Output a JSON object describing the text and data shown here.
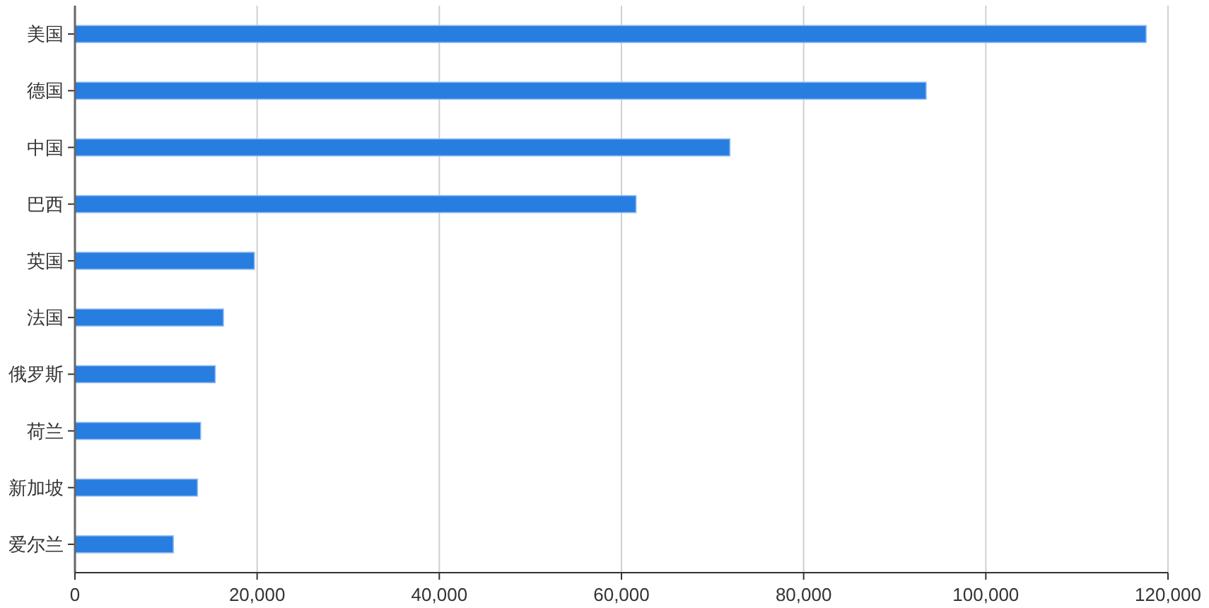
{
  "chart_data": {
    "type": "bar",
    "orientation": "horizontal",
    "categories": [
      "美国",
      "德国",
      "中国",
      "巴西",
      "英国",
      "法国",
      "俄罗斯",
      "荷兰",
      "新加坡",
      "爱尔兰"
    ],
    "values": [
      117600,
      93450,
      71900,
      61600,
      19700,
      16300,
      15400,
      13800,
      13450,
      10800
    ],
    "color": "#277de0",
    "xlim": [
      0,
      120000
    ],
    "xticks": [
      {
        "value": 0,
        "label": "0"
      },
      {
        "value": 20000,
        "label": "20,000"
      },
      {
        "value": 40000,
        "label": "40,000"
      },
      {
        "value": 60000,
        "label": "60,000"
      },
      {
        "value": 80000,
        "label": "80,000"
      },
      {
        "value": 100000,
        "label": "100,000"
      },
      {
        "value": 120000,
        "label": "120,000"
      }
    ],
    "grid": "x"
  }
}
